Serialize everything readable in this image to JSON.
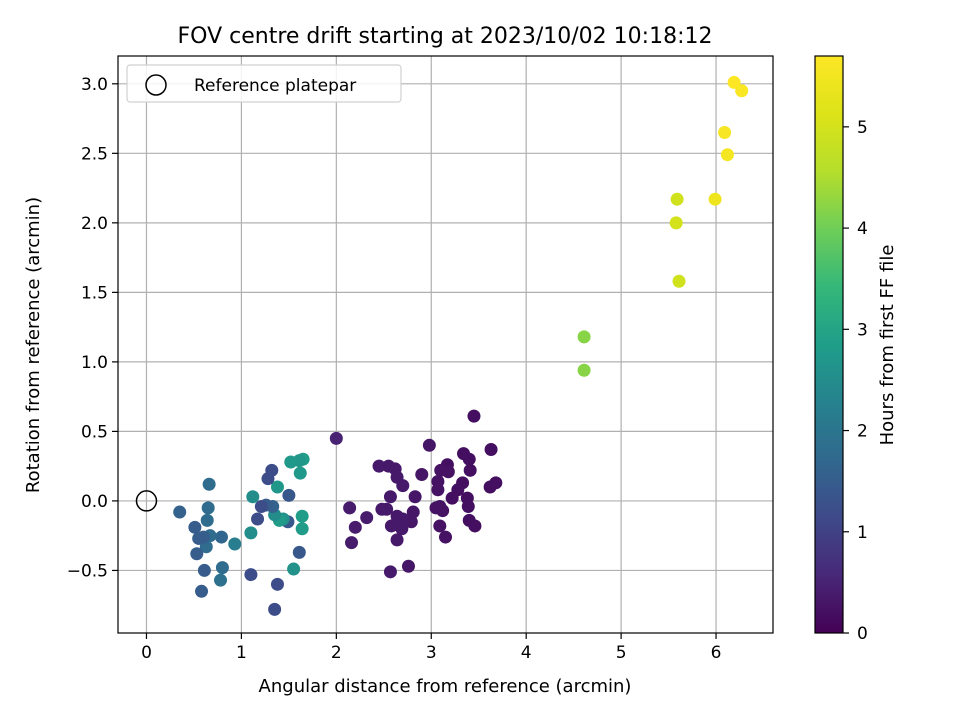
{
  "chart_data": {
    "type": "scatter",
    "title": "FOV centre drift starting at 2023/10/02 10:18:12",
    "xlabel": "Angular distance from reference (arcmin)",
    "ylabel": "Rotation from reference (arcmin)",
    "xlim": [
      -0.3,
      6.6
    ],
    "ylim": [
      -0.95,
      3.2
    ],
    "xticks": [
      0,
      1,
      2,
      3,
      4,
      5,
      6
    ],
    "xtick_labels": [
      "0",
      "1",
      "2",
      "3",
      "4",
      "5",
      "6"
    ],
    "yticks": [
      -0.5,
      0.0,
      0.5,
      1.0,
      1.5,
      2.0,
      2.5,
      3.0
    ],
    "ytick_labels": [
      "−0.5",
      "0.0",
      "0.5",
      "1.0",
      "1.5",
      "2.0",
      "2.5",
      "3.0"
    ],
    "grid": true,
    "legend": {
      "location": "upper-left",
      "entries": [
        "Reference platepar"
      ]
    },
    "reference_point": {
      "x": 0.0,
      "y": 0.0,
      "marker": "open-circle"
    },
    "colorbar": {
      "label": "Hours from first FF file",
      "range": [
        0,
        5.7
      ],
      "ticks": [
        0,
        1,
        2,
        3,
        4,
        5
      ],
      "tick_labels": [
        "0",
        "1",
        "2",
        "3",
        "4",
        "5"
      ],
      "colormap": "viridis"
    },
    "points": [
      {
        "x": 3.45,
        "y": 0.61,
        "h": 0.2
      },
      {
        "x": 3.63,
        "y": 0.37,
        "h": 0.2
      },
      {
        "x": 3.68,
        "y": 0.13,
        "h": 0.2
      },
      {
        "x": 3.62,
        "y": 0.1,
        "h": 0.2
      },
      {
        "x": 3.46,
        "y": -0.18,
        "h": 0.2
      },
      {
        "x": 3.4,
        "y": -0.14,
        "h": 0.2
      },
      {
        "x": 3.41,
        "y": 0.22,
        "h": 0.2
      },
      {
        "x": 3.4,
        "y": 0.3,
        "h": 0.2
      },
      {
        "x": 3.34,
        "y": 0.34,
        "h": 0.2
      },
      {
        "x": 3.38,
        "y": 0.02,
        "h": 0.2
      },
      {
        "x": 3.39,
        "y": -0.04,
        "h": 0.2
      },
      {
        "x": 3.33,
        "y": 0.13,
        "h": 0.2
      },
      {
        "x": 3.28,
        "y": 0.08,
        "h": 0.2
      },
      {
        "x": 3.22,
        "y": 0.02,
        "h": 0.2
      },
      {
        "x": 3.17,
        "y": 0.26,
        "h": 0.2
      },
      {
        "x": 3.18,
        "y": 0.21,
        "h": 0.25
      },
      {
        "x": 3.1,
        "y": 0.22,
        "h": 0.25
      },
      {
        "x": 3.07,
        "y": 0.14,
        "h": 0.25
      },
      {
        "x": 3.07,
        "y": 0.08,
        "h": 0.25
      },
      {
        "x": 3.09,
        "y": -0.04,
        "h": 0.25
      },
      {
        "x": 3.05,
        "y": -0.05,
        "h": 0.25
      },
      {
        "x": 3.12,
        "y": -0.07,
        "h": 0.25
      },
      {
        "x": 3.09,
        "y": -0.18,
        "h": 0.25
      },
      {
        "x": 3.15,
        "y": -0.26,
        "h": 0.25
      },
      {
        "x": 2.98,
        "y": 0.4,
        "h": 0.3
      },
      {
        "x": 2.9,
        "y": 0.19,
        "h": 0.3
      },
      {
        "x": 2.83,
        "y": 0.03,
        "h": 0.3
      },
      {
        "x": 2.81,
        "y": -0.08,
        "h": 0.3
      },
      {
        "x": 2.79,
        "y": -0.15,
        "h": 0.3
      },
      {
        "x": 2.76,
        "y": -0.47,
        "h": 0.3
      },
      {
        "x": 2.7,
        "y": 0.11,
        "h": 0.35
      },
      {
        "x": 2.64,
        "y": 0.17,
        "h": 0.35
      },
      {
        "x": 2.62,
        "y": 0.23,
        "h": 0.35
      },
      {
        "x": 2.55,
        "y": 0.25,
        "h": 0.35
      },
      {
        "x": 2.45,
        "y": 0.25,
        "h": 0.35
      },
      {
        "x": 2.57,
        "y": 0.03,
        "h": 0.35
      },
      {
        "x": 2.53,
        "y": -0.06,
        "h": 0.35
      },
      {
        "x": 2.48,
        "y": -0.06,
        "h": 0.35
      },
      {
        "x": 2.64,
        "y": -0.11,
        "h": 0.35
      },
      {
        "x": 2.7,
        "y": -0.13,
        "h": 0.35
      },
      {
        "x": 2.69,
        "y": -0.2,
        "h": 0.35
      },
      {
        "x": 2.62,
        "y": -0.17,
        "h": 0.35
      },
      {
        "x": 2.58,
        "y": -0.18,
        "h": 0.35
      },
      {
        "x": 2.64,
        "y": -0.28,
        "h": 0.35
      },
      {
        "x": 2.57,
        "y": -0.51,
        "h": 0.35
      },
      {
        "x": 2.32,
        "y": -0.12,
        "h": 0.4
      },
      {
        "x": 2.2,
        "y": -0.19,
        "h": 0.4
      },
      {
        "x": 2.16,
        "y": -0.3,
        "h": 0.4
      },
      {
        "x": 2.14,
        "y": -0.05,
        "h": 0.4
      },
      {
        "x": 2.0,
        "y": 0.45,
        "h": 0.5
      },
      {
        "x": 1.65,
        "y": 0.3,
        "h": 2.8
      },
      {
        "x": 1.61,
        "y": 0.29,
        "h": 2.7
      },
      {
        "x": 1.52,
        "y": 0.28,
        "h": 2.75
      },
      {
        "x": 1.62,
        "y": 0.2,
        "h": 2.75
      },
      {
        "x": 1.64,
        "y": -0.11,
        "h": 2.8
      },
      {
        "x": 1.64,
        "y": -0.2,
        "h": 2.8
      },
      {
        "x": 1.55,
        "y": -0.49,
        "h": 2.6
      },
      {
        "x": 1.61,
        "y": -0.37,
        "h": 1.4
      },
      {
        "x": 1.5,
        "y": 0.04,
        "h": 1.4
      },
      {
        "x": 1.49,
        "y": -0.15,
        "h": 1.4
      },
      {
        "x": 1.44,
        "y": -0.13,
        "h": 2.6
      },
      {
        "x": 1.4,
        "y": -0.14,
        "h": 2.8
      },
      {
        "x": 1.35,
        "y": -0.1,
        "h": 2.5
      },
      {
        "x": 1.38,
        "y": 0.1,
        "h": 2.7
      },
      {
        "x": 1.33,
        "y": -0.04,
        "h": 1.6
      },
      {
        "x": 1.26,
        "y": -0.03,
        "h": 1.5
      },
      {
        "x": 1.32,
        "y": 0.22,
        "h": 1.2
      },
      {
        "x": 1.28,
        "y": 0.16,
        "h": 1.2
      },
      {
        "x": 1.21,
        "y": -0.04,
        "h": 1.2
      },
      {
        "x": 1.17,
        "y": -0.13,
        "h": 1.2
      },
      {
        "x": 1.12,
        "y": 0.03,
        "h": 2.5
      },
      {
        "x": 1.1,
        "y": -0.23,
        "h": 2.5
      },
      {
        "x": 1.38,
        "y": -0.6,
        "h": 1.2
      },
      {
        "x": 1.35,
        "y": -0.78,
        "h": 1.2
      },
      {
        "x": 1.1,
        "y": -0.53,
        "h": 1.2
      },
      {
        "x": 0.93,
        "y": -0.31,
        "h": 2.2
      },
      {
        "x": 0.79,
        "y": -0.26,
        "h": 1.7
      },
      {
        "x": 0.8,
        "y": -0.48,
        "h": 1.8
      },
      {
        "x": 0.78,
        "y": -0.57,
        "h": 1.9
      },
      {
        "x": 0.66,
        "y": 0.12,
        "h": 1.8
      },
      {
        "x": 0.65,
        "y": -0.05,
        "h": 1.8
      },
      {
        "x": 0.64,
        "y": -0.14,
        "h": 1.8
      },
      {
        "x": 0.67,
        "y": -0.25,
        "h": 1.8
      },
      {
        "x": 0.63,
        "y": -0.33,
        "h": 1.8
      },
      {
        "x": 0.6,
        "y": -0.26,
        "h": 1.5
      },
      {
        "x": 0.55,
        "y": -0.27,
        "h": 1.5
      },
      {
        "x": 0.53,
        "y": -0.38,
        "h": 1.5
      },
      {
        "x": 0.51,
        "y": -0.19,
        "h": 1.5
      },
      {
        "x": 0.61,
        "y": -0.5,
        "h": 1.5
      },
      {
        "x": 0.58,
        "y": -0.65,
        "h": 1.5
      },
      {
        "x": 0.35,
        "y": -0.08,
        "h": 1.6
      },
      {
        "x": 4.61,
        "y": 1.18,
        "h": 4.2
      },
      {
        "x": 4.61,
        "y": 0.94,
        "h": 4.2
      },
      {
        "x": 5.59,
        "y": 2.17,
        "h": 4.95
      },
      {
        "x": 5.58,
        "y": 2.0,
        "h": 5.0
      },
      {
        "x": 5.61,
        "y": 1.58,
        "h": 4.95
      },
      {
        "x": 6.19,
        "y": 3.01,
        "h": 5.7
      },
      {
        "x": 6.27,
        "y": 2.95,
        "h": 5.65
      },
      {
        "x": 6.09,
        "y": 2.65,
        "h": 5.6
      },
      {
        "x": 6.12,
        "y": 2.49,
        "h": 5.55
      },
      {
        "x": 5.99,
        "y": 2.17,
        "h": 5.45
      }
    ]
  }
}
